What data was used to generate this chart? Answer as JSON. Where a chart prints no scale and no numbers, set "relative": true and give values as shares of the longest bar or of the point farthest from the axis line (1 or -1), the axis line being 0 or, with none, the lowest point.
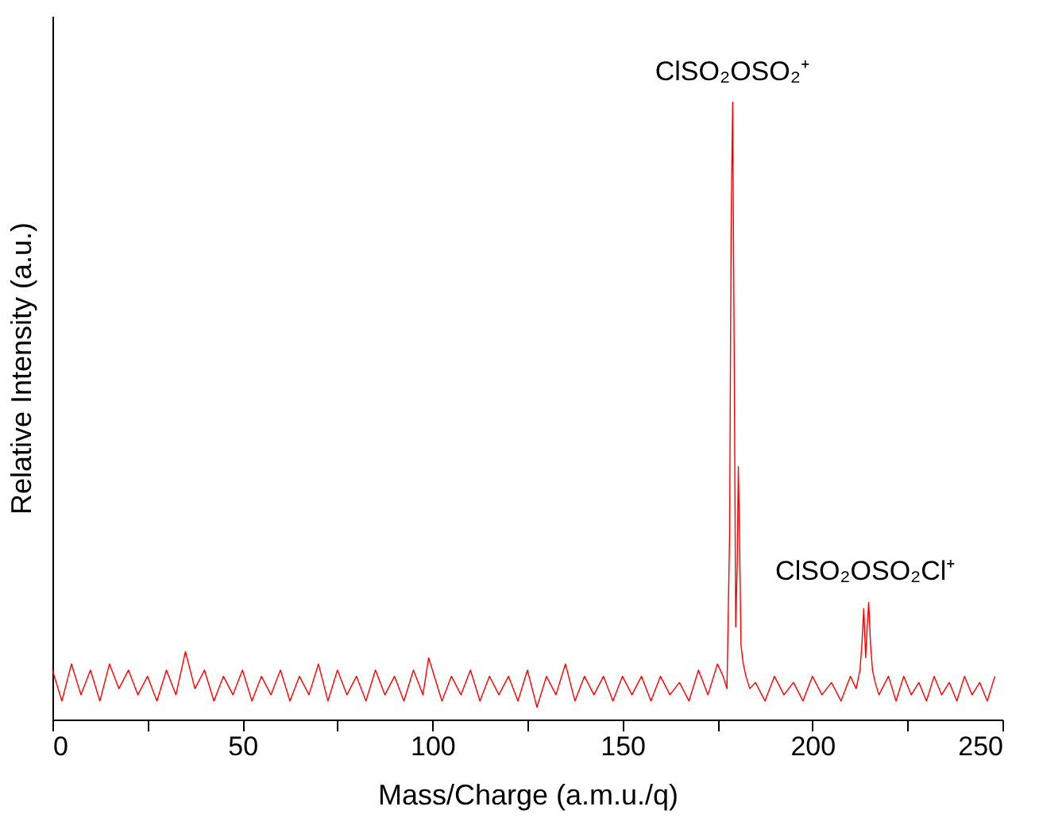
{
  "chart_data": {
    "type": "line",
    "relative": true,
    "xlabel": "Mass/Charge (a.m.u./q)",
    "ylabel": "Relative Intensity (a.u.)",
    "xlim": [
      0,
      250
    ],
    "xticks": [
      0,
      {
        "value": 25,
        "label": null
      },
      50,
      {
        "value": 75,
        "label": null
      },
      100,
      {
        "value": 125,
        "label": null
      },
      150,
      {
        "value": 175,
        "label": null
      },
      200,
      {
        "value": 225,
        "label": null
      },
      250
    ],
    "grid": false,
    "marker": "none",
    "line_style": "solid",
    "annotations": [
      {
        "text": "ClSO₂OSO₂⁺",
        "x": 179,
        "y": 1.0
      },
      {
        "text": "ClSO₂OSO₂Cl⁺",
        "x": 214,
        "y": 0.19
      }
    ],
    "series": [
      {
        "color": "#ff0000",
        "x": [
          0,
          2.5,
          5,
          7.5,
          10,
          12.5,
          15,
          17.5,
          20,
          22.5,
          25,
          27.5,
          30,
          32.5,
          35,
          37.5,
          40,
          42.5,
          45,
          47.5,
          50,
          52.5,
          55,
          57.5,
          60,
          62.5,
          65,
          67.5,
          70,
          72.5,
          75,
          77.5,
          80,
          82.5,
          85,
          87.5,
          90,
          92.5,
          95,
          97.5,
          99,
          102.5,
          105,
          107.5,
          110,
          112.5,
          115,
          117.5,
          120,
          122.5,
          125,
          127.5,
          130,
          132.5,
          135,
          137.5,
          140,
          142.5,
          145,
          147.5,
          150,
          152.5,
          155,
          157.5,
          160,
          162.5,
          165,
          167.5,
          170,
          172.5,
          175,
          176.5,
          177.5,
          178.2,
          178.6,
          179,
          179.4,
          179.8,
          180.2,
          180.5,
          180.8,
          181.2,
          181.8,
          182.5,
          183.5,
          185,
          187.5,
          190,
          192.5,
          195,
          197.5,
          200,
          202.5,
          205,
          207.5,
          210,
          211.5,
          212.5,
          213,
          213.5,
          214,
          214.4,
          214.8,
          215.3,
          215.8,
          216.5,
          217.5,
          220,
          222,
          224,
          226,
          228,
          230,
          232,
          234,
          236,
          238,
          240,
          242,
          244,
          246,
          248
        ],
        "values": [
          0.08,
          0.03,
          0.09,
          0.04,
          0.08,
          0.03,
          0.09,
          0.05,
          0.08,
          0.04,
          0.07,
          0.03,
          0.08,
          0.04,
          0.11,
          0.05,
          0.08,
          0.03,
          0.07,
          0.04,
          0.08,
          0.03,
          0.07,
          0.04,
          0.08,
          0.03,
          0.07,
          0.04,
          0.09,
          0.03,
          0.08,
          0.04,
          0.07,
          0.03,
          0.08,
          0.04,
          0.07,
          0.03,
          0.08,
          0.04,
          0.1,
          0.03,
          0.07,
          0.04,
          0.08,
          0.03,
          0.07,
          0.04,
          0.07,
          0.03,
          0.08,
          0.02,
          0.07,
          0.04,
          0.09,
          0.03,
          0.07,
          0.04,
          0.07,
          0.03,
          0.07,
          0.04,
          0.07,
          0.03,
          0.07,
          0.04,
          0.06,
          0.03,
          0.08,
          0.04,
          0.09,
          0.07,
          0.05,
          0.3,
          0.8,
          1.0,
          0.6,
          0.15,
          0.25,
          0.41,
          0.3,
          0.12,
          0.09,
          0.07,
          0.05,
          0.06,
          0.03,
          0.07,
          0.04,
          0.06,
          0.03,
          0.07,
          0.04,
          0.06,
          0.03,
          0.07,
          0.05,
          0.08,
          0.12,
          0.18,
          0.1,
          0.15,
          0.19,
          0.12,
          0.08,
          0.06,
          0.04,
          0.07,
          0.03,
          0.07,
          0.04,
          0.06,
          0.03,
          0.07,
          0.04,
          0.06,
          0.03,
          0.07,
          0.04,
          0.06,
          0.03,
          0.07
        ]
      }
    ]
  }
}
